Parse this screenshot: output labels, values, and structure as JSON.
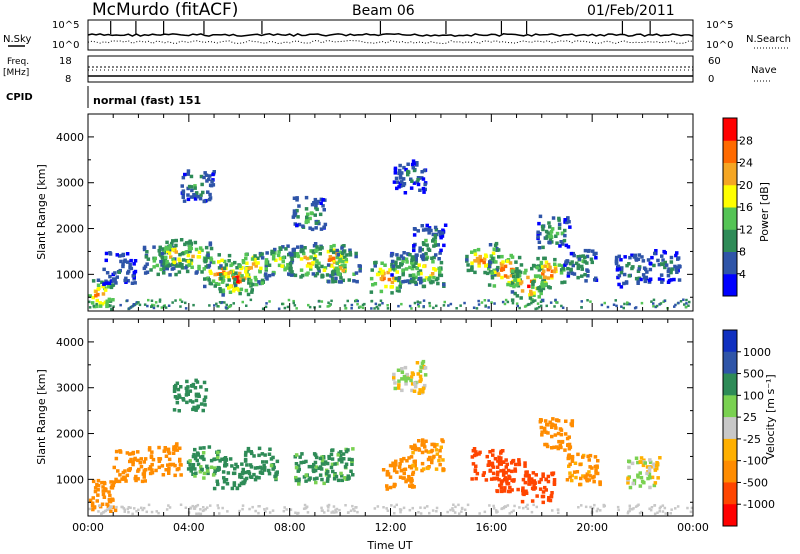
{
  "header": {
    "station": "McMurdo (fitACF)",
    "beam": "Beam 06",
    "date": "01/Feb/2011"
  },
  "top_panels": {
    "nsky_label": "N.Sky",
    "nsearch_label": "N.Search",
    "noise_ticks": [
      "10^5",
      "10^0"
    ],
    "freq_label_1": "Freq.",
    "freq_label_2": "[MHz]",
    "freq_ticks": [
      "18",
      "8"
    ],
    "nave_label": "Nave",
    "nave_ticks": [
      "60",
      "0"
    ],
    "cpid_label": "CPID",
    "cpid_value": "normal (fast) 151"
  },
  "colors": {
    "power": [
      "#0000ff",
      "#2f55a8",
      "#2e8b57",
      "#55c455",
      "#ffff00",
      "#f5a623",
      "#ff6a00",
      "#ff0000"
    ],
    "velocity": [
      "#ff0000",
      "#ff4500",
      "#ff8c00",
      "#ffb000",
      "#c8c8c8",
      "#7ad151",
      "#2e8b57",
      "#2f55a8",
      "#1030c0"
    ]
  },
  "chart_data": [
    {
      "type": "heatmap",
      "name": "power",
      "ylabel": "Slant Range [km]",
      "xlabel": "",
      "xlim": [
        "00:00",
        "24:00"
      ],
      "ylim": [
        200,
        4500
      ],
      "yticks": [
        "1000",
        "2000",
        "3000",
        "4000"
      ],
      "colorbar_label": "Power [dB]",
      "colorbar_ticks": [
        "4",
        "8",
        "12",
        "16",
        "20",
        "24",
        "28"
      ],
      "colorbar_range": [
        0,
        32
      ],
      "echo_regions": [
        {
          "t": 0.4,
          "r": 500,
          "v": 26
        },
        {
          "t": 1.2,
          "r": 1100,
          "v": 10
        },
        {
          "t": 2.8,
          "r": 1300,
          "v": 18
        },
        {
          "t": 3.4,
          "r": 1400,
          "v": 22
        },
        {
          "t": 4.2,
          "r": 1350,
          "v": 24
        },
        {
          "t": 5.2,
          "r": 1050,
          "v": 28
        },
        {
          "t": 5.8,
          "r": 850,
          "v": 30
        },
        {
          "t": 6.4,
          "r": 1100,
          "v": 26
        },
        {
          "t": 7.5,
          "r": 1250,
          "v": 20
        },
        {
          "t": 8.6,
          "r": 1250,
          "v": 24
        },
        {
          "t": 9.5,
          "r": 1300,
          "v": 28
        },
        {
          "t": 10.1,
          "r": 1150,
          "v": 22
        },
        {
          "t": 11.8,
          "r": 900,
          "v": 28
        },
        {
          "t": 12.6,
          "r": 1100,
          "v": 18
        },
        {
          "t": 13.4,
          "r": 1050,
          "v": 24
        },
        {
          "t": 13.5,
          "r": 1700,
          "v": 12
        },
        {
          "t": 15.6,
          "r": 1300,
          "v": 26
        },
        {
          "t": 16.5,
          "r": 1050,
          "v": 30
        },
        {
          "t": 17.4,
          "r": 750,
          "v": 30
        },
        {
          "t": 18.2,
          "r": 1000,
          "v": 28
        },
        {
          "t": 18.4,
          "r": 1900,
          "v": 16
        },
        {
          "t": 19.5,
          "r": 1150,
          "v": 14
        },
        {
          "t": 21.5,
          "r": 1050,
          "v": 12
        },
        {
          "t": 22.8,
          "r": 1150,
          "v": 10
        },
        {
          "t": 4.3,
          "r": 2900,
          "v": 12
        },
        {
          "t": 8.7,
          "r": 2300,
          "v": 16
        },
        {
          "t": 12.7,
          "r": 3100,
          "v": 8
        }
      ]
    },
    {
      "type": "heatmap",
      "name": "velocity",
      "ylabel": "Slant Range [km]",
      "xlabel": "Time UT",
      "xticks": [
        "00:00",
        "04:00",
        "08:00",
        "12:00",
        "16:00",
        "20:00",
        "00:00"
      ],
      "xlim": [
        "00:00",
        "24:00"
      ],
      "ylim": [
        200,
        4500
      ],
      "yticks": [
        "1000",
        "2000",
        "3000",
        "4000"
      ],
      "colorbar_label": "Velocity [m s⁻¹]",
      "colorbar_ticks": [
        "1000",
        "500",
        "100",
        "25",
        "-25",
        "-100",
        "-500",
        "-1000"
      ],
      "echo_regions": [
        {
          "t": 0.4,
          "r": 600,
          "v": -200
        },
        {
          "t": 1.6,
          "r": 1250,
          "v": -200
        },
        {
          "t": 3.0,
          "r": 1400,
          "v": -300
        },
        {
          "t": 4.5,
          "r": 1350,
          "v": 150
        },
        {
          "t": 5.6,
          "r": 1100,
          "v": 200
        },
        {
          "t": 6.8,
          "r": 1300,
          "v": 180
        },
        {
          "t": 8.8,
          "r": 1200,
          "v": 150
        },
        {
          "t": 9.8,
          "r": 1300,
          "v": 160
        },
        {
          "t": 12.3,
          "r": 1100,
          "v": -300
        },
        {
          "t": 13.4,
          "r": 1500,
          "v": -150
        },
        {
          "t": 15.8,
          "r": 1300,
          "v": -600
        },
        {
          "t": 16.8,
          "r": 1050,
          "v": -700
        },
        {
          "t": 17.8,
          "r": 800,
          "v": -600
        },
        {
          "t": 18.5,
          "r": 1950,
          "v": -200
        },
        {
          "t": 19.6,
          "r": 1200,
          "v": -150
        },
        {
          "t": 22.0,
          "r": 1100,
          "v": 0
        },
        {
          "t": 12.7,
          "r": 3200,
          "v": 0
        },
        {
          "t": 4.0,
          "r": 2800,
          "v": 300
        }
      ]
    }
  ]
}
